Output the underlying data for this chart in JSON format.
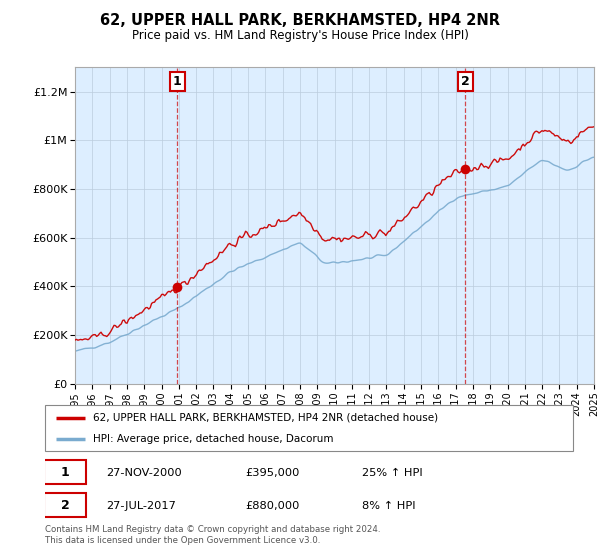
{
  "title": "62, UPPER HALL PARK, BERKHAMSTED, HP4 2NR",
  "subtitle": "Price paid vs. HM Land Registry's House Price Index (HPI)",
  "xlim_years": [
    1995,
    2025
  ],
  "ylim": [
    0,
    1300000
  ],
  "yticks": [
    0,
    200000,
    400000,
    600000,
    800000,
    1000000,
    1200000
  ],
  "ytick_labels": [
    "£0",
    "£200K",
    "£400K",
    "£600K",
    "£800K",
    "£1M",
    "£1.2M"
  ],
  "xticks": [
    1995,
    1996,
    1997,
    1998,
    1999,
    2000,
    2001,
    2002,
    2003,
    2004,
    2005,
    2006,
    2007,
    2008,
    2009,
    2010,
    2011,
    2012,
    2013,
    2014,
    2015,
    2016,
    2017,
    2018,
    2019,
    2020,
    2021,
    2022,
    2023,
    2024,
    2025
  ],
  "sale1_year": 2000.9,
  "sale1_price": 395000,
  "sale1_label": "1",
  "sale2_year": 2017.55,
  "sale2_price": 880000,
  "sale2_label": "2",
  "red_line_color": "#cc0000",
  "blue_line_color": "#7aabcf",
  "shade_color": "#ddeeff",
  "annotation_box_color": "#cc0000",
  "background_color": "#ffffff",
  "grid_color": "#cccccc",
  "legend_label1": "62, UPPER HALL PARK, BERKHAMSTED, HP4 2NR (detached house)",
  "legend_label2": "HPI: Average price, detached house, Dacorum",
  "table_row1": [
    "1",
    "27-NOV-2000",
    "£395,000",
    "25% ↑ HPI"
  ],
  "table_row2": [
    "2",
    "27-JUL-2017",
    "£880,000",
    "8% ↑ HPI"
  ],
  "footer": "Contains HM Land Registry data © Crown copyright and database right 2024.\nThis data is licensed under the Open Government Licence v3.0."
}
